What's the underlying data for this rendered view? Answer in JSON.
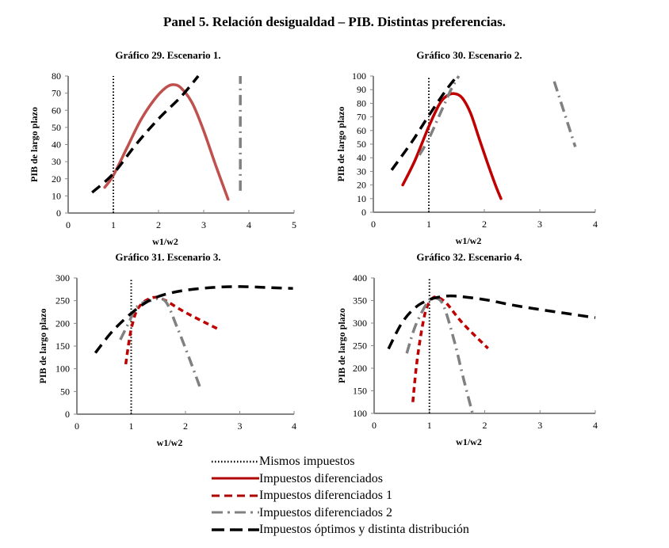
{
  "panel_title": "Panel 5. Relación desigualdad – PIB. Distintas preferencias.",
  "legend": [
    {
      "key": "mismos",
      "label": "Mismos impuestos",
      "color": "#000000",
      "style": "dotted"
    },
    {
      "key": "dif",
      "label": "Impuestos diferenciados",
      "color": "#b00000",
      "style": "solid"
    },
    {
      "key": "dif1",
      "label": "Impuestos diferenciados 1",
      "color": "#b00000",
      "style": "dashed"
    },
    {
      "key": "dif2",
      "label": "Impuestos diferenciados 2",
      "color": "#808080",
      "style": "dashdot"
    },
    {
      "key": "opt",
      "label": "Impuestos óptimos y distinta distribución",
      "color": "#000000",
      "style": "longdash"
    }
  ],
  "chart_data": [
    {
      "type": "line",
      "title": "Gráfico 29. Escenario 1.",
      "xlabel": "w1/w2",
      "ylabel": "PIB de largo plazo",
      "xlim": [
        0,
        5
      ],
      "ylim": [
        0,
        80
      ],
      "xticks": [
        0,
        1,
        2,
        3,
        4,
        5
      ],
      "yticks": [
        0,
        10,
        20,
        30,
        40,
        50,
        60,
        70,
        80
      ],
      "grid": false,
      "series": [
        {
          "key": "mismos",
          "name": "Mismos impuestos",
          "color": "#000000",
          "points": [
            [
              1,
              0
            ],
            [
              1,
              80
            ]
          ]
        },
        {
          "key": "dif",
          "name": "Impuestos diferenciados",
          "color": "#c0504d",
          "points": [
            [
              0.81,
              15
            ],
            [
              1.0,
              22
            ],
            [
              1.3,
              38
            ],
            [
              1.6,
              54
            ],
            [
              1.9,
              66
            ],
            [
              2.15,
              73
            ],
            [
              2.32,
              75
            ],
            [
              2.5,
              73
            ],
            [
              2.75,
              64
            ],
            [
              3.0,
              48
            ],
            [
              3.25,
              29
            ],
            [
              3.54,
              8
            ]
          ]
        },
        {
          "key": "dif2",
          "name": "Impuestos diferenciados 2",
          "color": "#808080",
          "points": [
            [
              3.81,
              13
            ],
            [
              3.81,
              80
            ]
          ]
        },
        {
          "key": "opt",
          "name": "Impuestos óptimos y distinta distribución",
          "color": "#000000",
          "points": [
            [
              0.53,
              12
            ],
            [
              1.0,
              23
            ],
            [
              1.5,
              40
            ],
            [
              2.0,
              55
            ],
            [
              2.5,
              68
            ],
            [
              2.88,
              80
            ]
          ]
        }
      ]
    },
    {
      "type": "line",
      "title": "Gráfico 30. Escenario 2.",
      "xlabel": "w1/w2",
      "ylabel": "PIB de largo plazo",
      "xlim": [
        0,
        4
      ],
      "ylim": [
        0,
        100
      ],
      "xticks": [
        0,
        1,
        2,
        3,
        4
      ],
      "yticks": [
        0,
        10,
        20,
        30,
        40,
        50,
        60,
        70,
        80,
        90,
        100
      ],
      "grid": false,
      "series": [
        {
          "key": "mismos",
          "name": "Mismos impuestos",
          "color": "#000000",
          "points": [
            [
              1,
              0
            ],
            [
              1,
              100
            ]
          ]
        },
        {
          "key": "dif",
          "name": "Impuestos diferenciados",
          "color": "#c00000",
          "points": [
            [
              0.53,
              20
            ],
            [
              0.75,
              38
            ],
            [
              1.0,
              63
            ],
            [
              1.2,
              80
            ],
            [
              1.35,
              86
            ],
            [
              1.47,
              87
            ],
            [
              1.6,
              84
            ],
            [
              1.75,
              73
            ],
            [
              1.9,
              55
            ],
            [
              2.05,
              37
            ],
            [
              2.2,
              20
            ],
            [
              2.3,
              10
            ]
          ]
        },
        {
          "key": "dif2",
          "name": "Impuestos diferenciados 2",
          "color": "#808080",
          "points": [
            [
              0.83,
              42
            ],
            [
              1.0,
              54
            ],
            [
              1.2,
              72
            ],
            [
              1.4,
              90
            ],
            [
              1.54,
              100
            ]
          ]
        },
        {
          "key": "dif2b",
          "name": "Impuestos diferenciados 2",
          "color": "#808080",
          "points": [
            [
              3.26,
              96
            ],
            [
              3.45,
              72
            ],
            [
              3.64,
              48
            ]
          ]
        },
        {
          "key": "opt",
          "name": "Impuestos óptimos y distinta distribución",
          "color": "#000000",
          "points": [
            [
              0.33,
              31
            ],
            [
              0.7,
              52
            ],
            [
              1.0,
              71
            ],
            [
              1.3,
              89
            ],
            [
              1.51,
              100
            ]
          ]
        }
      ]
    },
    {
      "type": "line",
      "title": "Gráfico 31. Escenario 3.",
      "xlabel": "w1/w2",
      "ylabel": "PIB de largo plazo",
      "xlim": [
        0,
        4
      ],
      "ylim": [
        0,
        300
      ],
      "xticks": [
        0,
        1,
        2,
        3,
        4
      ],
      "yticks": [
        0,
        50,
        100,
        150,
        200,
        250,
        300
      ],
      "grid": false,
      "series": [
        {
          "key": "mismos",
          "name": "Mismos impuestos",
          "color": "#000000",
          "points": [
            [
              1,
              0
            ],
            [
              1,
              300
            ]
          ]
        },
        {
          "key": "dif1",
          "name": "Impuestos diferenciados 1",
          "color": "#c00000",
          "points": [
            [
              0.9,
              110
            ],
            [
              0.96,
              160
            ],
            [
              1.02,
              197
            ],
            [
              1.12,
              232
            ],
            [
              1.31,
              253
            ],
            [
              1.55,
              255
            ],
            [
              2.0,
              224
            ],
            [
              2.64,
              185
            ]
          ]
        },
        {
          "key": "dif2",
          "name": "Impuestos diferenciados 2",
          "color": "#808080",
          "points": [
            [
              0.8,
              164
            ],
            [
              0.95,
              200
            ],
            [
              1.11,
              237
            ],
            [
              1.35,
              250
            ],
            [
              1.62,
              250
            ],
            [
              1.85,
              190
            ],
            [
              2.08,
              120
            ],
            [
              2.28,
              55
            ]
          ]
        },
        {
          "key": "opt",
          "name": "Impuestos óptimos y distinta distribución",
          "color": "#000000",
          "points": [
            [
              0.34,
              135
            ],
            [
              0.65,
              182
            ],
            [
              1.0,
              222
            ],
            [
              1.3,
              248
            ],
            [
              1.6,
              263
            ],
            [
              2.0,
              273
            ],
            [
              2.5,
              279
            ],
            [
              3.0,
              281
            ],
            [
              3.5,
              279
            ],
            [
              3.98,
              277
            ]
          ]
        }
      ]
    },
    {
      "type": "line",
      "title": "Gráfico 32. Escenario 4.",
      "xlabel": "w1/w2",
      "ylabel": "PIB de largo plazo",
      "xlim": [
        0,
        4
      ],
      "ylim": [
        100,
        400
      ],
      "xticks": [
        0,
        1,
        2,
        3,
        4
      ],
      "yticks": [
        100,
        150,
        200,
        250,
        300,
        350,
        400
      ],
      "grid": false,
      "series": [
        {
          "key": "mismos",
          "name": "Mismos impuestos",
          "color": "#000000",
          "points": [
            [
              1,
              100
            ],
            [
              1,
              400
            ]
          ]
        },
        {
          "key": "dif1",
          "name": "Impuestos diferenciados 1",
          "color": "#c00000",
          "points": [
            [
              0.7,
              125
            ],
            [
              0.76,
              200
            ],
            [
              0.84,
              270
            ],
            [
              0.93,
              326
            ],
            [
              1.02,
              350
            ],
            [
              1.12,
              358
            ],
            [
              1.3,
              345
            ],
            [
              1.6,
              300
            ],
            [
              2.06,
              244
            ]
          ]
        },
        {
          "key": "dif2",
          "name": "Impuestos diferenciados 2",
          "color": "#808080",
          "points": [
            [
              0.59,
              233
            ],
            [
              0.75,
              295
            ],
            [
              0.97,
              347
            ],
            [
              1.09,
              356
            ],
            [
              1.25,
              340
            ],
            [
              1.45,
              260
            ],
            [
              1.62,
              175
            ],
            [
              1.78,
              100
            ]
          ]
        },
        {
          "key": "opt",
          "name": "Impuestos óptimos y distinta distribución",
          "color": "#000000",
          "points": [
            [
              0.26,
              243
            ],
            [
              0.5,
              300
            ],
            [
              0.75,
              335
            ],
            [
              1.0,
              352
            ],
            [
              1.2,
              358
            ],
            [
              1.45,
              360
            ],
            [
              2.0,
              352
            ],
            [
              2.5,
              340
            ],
            [
              3.0,
              330
            ],
            [
              3.5,
              321
            ],
            [
              4.0,
              312
            ]
          ]
        }
      ]
    }
  ]
}
